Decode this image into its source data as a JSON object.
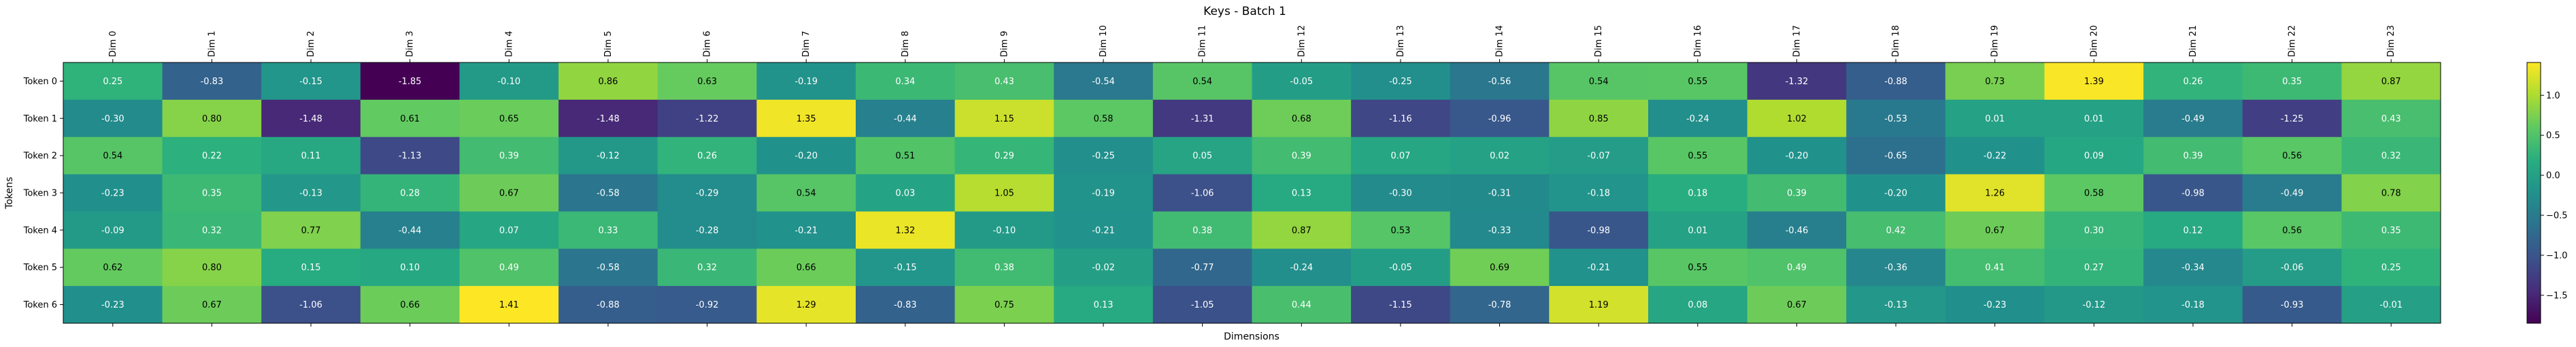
{
  "chart_data": {
    "type": "heatmap",
    "title": "Keys - Batch 1",
    "xlabel": "Dimensions",
    "ylabel": "Tokens",
    "x_ticks": [
      "Dim 0",
      "Dim 1",
      "Dim 2",
      "Dim 3",
      "Dim 4",
      "Dim 5",
      "Dim 6",
      "Dim 7",
      "Dim 8",
      "Dim 9",
      "Dim 10",
      "Dim 11",
      "Dim 12",
      "Dim 13",
      "Dim 14",
      "Dim 15",
      "Dim 16",
      "Dim 17",
      "Dim 18",
      "Dim 19",
      "Dim 20",
      "Dim 21",
      "Dim 22",
      "Dim 23"
    ],
    "y_ticks": [
      "Token 0",
      "Token 1",
      "Token 2",
      "Token 3",
      "Token 4",
      "Token 5",
      "Token 6"
    ],
    "values": [
      [
        0.25,
        -0.83,
        -0.15,
        -1.85,
        -0.1,
        0.86,
        0.63,
        -0.19,
        0.34,
        0.43,
        -0.54,
        0.54,
        -0.05,
        -0.25,
        -0.56,
        0.54,
        0.55,
        -1.32,
        -0.88,
        0.73,
        1.39,
        0.26,
        0.35,
        0.87
      ],
      [
        -0.3,
        0.8,
        -1.48,
        0.61,
        0.65,
        -1.48,
        -1.22,
        1.35,
        -0.44,
        1.15,
        0.58,
        -1.31,
        0.68,
        -1.16,
        -0.96,
        0.85,
        -0.24,
        1.02,
        -0.53,
        0.01,
        0.01,
        -0.49,
        -1.25,
        0.43
      ],
      [
        0.54,
        0.22,
        0.11,
        -1.13,
        0.39,
        -0.12,
        0.26,
        -0.2,
        0.51,
        0.29,
        -0.25,
        0.05,
        0.39,
        0.07,
        0.02,
        -0.07,
        0.55,
        -0.2,
        -0.65,
        -0.22,
        0.09,
        0.39,
        0.56,
        0.32
      ],
      [
        -0.23,
        0.35,
        -0.13,
        0.28,
        0.67,
        -0.58,
        -0.29,
        0.54,
        0.03,
        1.05,
        -0.19,
        -1.06,
        0.13,
        -0.3,
        -0.31,
        -0.18,
        0.18,
        0.39,
        -0.2,
        1.26,
        0.58,
        -0.98,
        -0.49,
        0.78
      ],
      [
        -0.09,
        0.32,
        0.77,
        -0.44,
        0.07,
        0.33,
        -0.28,
        -0.21,
        1.32,
        -0.1,
        -0.21,
        0.38,
        0.87,
        0.53,
        -0.33,
        -0.98,
        0.01,
        -0.46,
        0.42,
        0.67,
        0.3,
        0.12,
        0.56,
        0.35
      ],
      [
        0.62,
        0.8,
        0.15,
        0.1,
        0.49,
        -0.58,
        0.32,
        0.66,
        -0.15,
        0.38,
        -0.02,
        -0.77,
        -0.24,
        -0.05,
        0.69,
        -0.21,
        0.55,
        0.49,
        -0.36,
        0.41,
        0.27,
        -0.34,
        -0.06,
        0.25
      ],
      [
        -0.23,
        0.67,
        -1.06,
        0.66,
        1.41,
        -0.88,
        -0.92,
        1.29,
        -0.83,
        0.75,
        0.13,
        -1.05,
        0.44,
        -1.15,
        -0.78,
        1.19,
        0.08,
        0.67,
        -0.13,
        -0.23,
        -0.12,
        -0.18,
        -0.93,
        -0.01
      ]
    ],
    "vmin": -1.85,
    "vmax": 1.41,
    "colormap": "viridis",
    "colorbar_ticks": [
      "1.0",
      "0.5",
      "0.0",
      "−0.5",
      "−1.0",
      "−1.5"
    ],
    "grid": false
  }
}
